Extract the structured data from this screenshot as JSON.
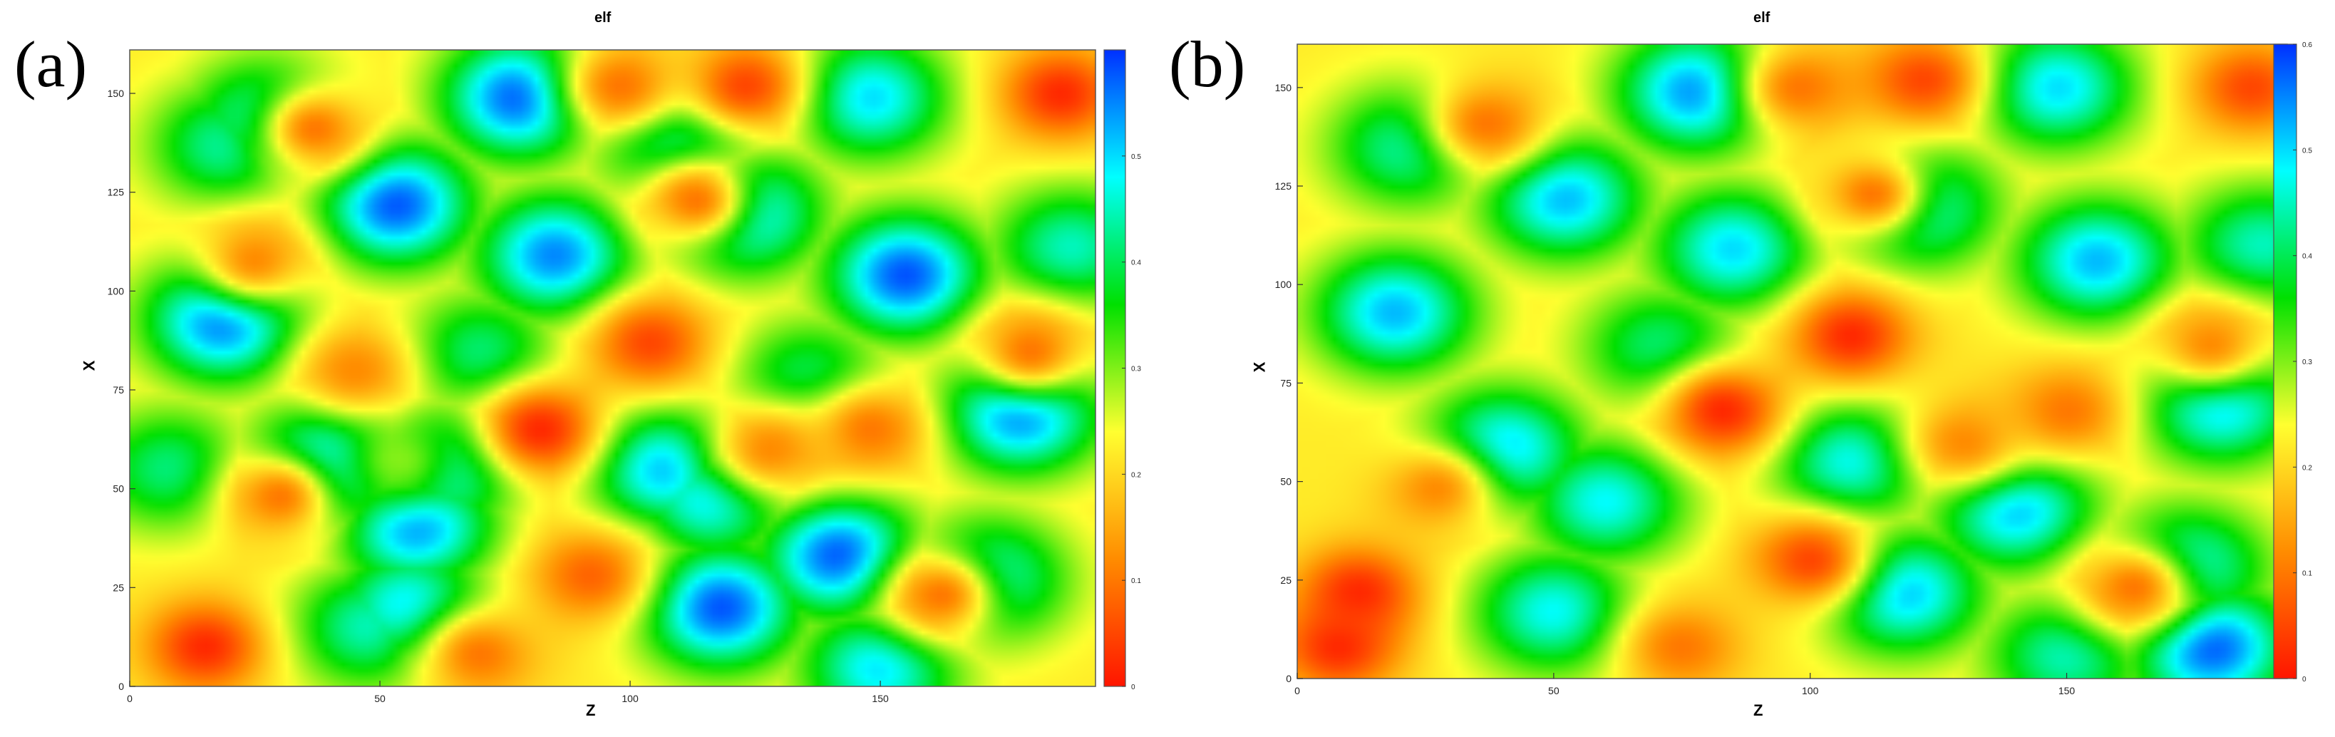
{
  "chart_data": [
    {
      "panel_label": "(a)",
      "type": "heatmap",
      "title": "elf",
      "xlabel": "Z",
      "ylabel": "X",
      "xlim": [
        0,
        193
      ],
      "ylim": [
        0,
        161
      ],
      "xticks": [
        0,
        50,
        100,
        150
      ],
      "yticks": [
        0,
        25,
        50,
        75,
        100,
        125,
        150
      ],
      "colorbar": {
        "range": [
          0,
          0.6
        ],
        "ticks": [
          0,
          0.1,
          0.2,
          0.3,
          0.4,
          0.5
        ],
        "tick_labels": [
          "0",
          "0.1",
          "0.2",
          "0.3",
          "0.4",
          "0.5"
        ],
        "colormap": [
          "#ff1500",
          "#ff8c00",
          "#ffff30",
          "#00e000",
          "#00ffff",
          "#0030ff"
        ]
      },
      "blobs_high": [
        [
          19,
          93,
          0.58
        ],
        [
          40,
          56,
          0.58
        ],
        [
          53,
          122,
          0.58
        ],
        [
          85,
          109,
          0.55
        ],
        [
          57,
          41,
          0.55
        ],
        [
          62,
          55,
          0.5
        ],
        [
          118,
          20,
          0.58
        ],
        [
          142,
          33,
          0.58
        ],
        [
          155,
          104,
          0.58
        ],
        [
          178,
          70,
          0.58
        ],
        [
          107,
          55,
          0.52
        ],
        [
          116,
          48,
          0.5
        ],
        [
          122,
          120,
          0.55
        ],
        [
          110,
          137,
          0.5
        ],
        [
          56,
          20,
          0.5
        ],
        [
          48,
          15,
          0.45
        ],
        [
          148,
          149,
          0.5
        ],
        [
          78,
          149,
          0.58
        ],
        [
          150,
          5,
          0.5
        ],
        [
          28,
          143,
          0.5
        ],
        [
          20,
          137,
          0.45
        ],
        [
          171,
          27,
          0.5
        ],
        [
          188,
          111,
          0.45
        ],
        [
          70,
          84,
          0.42
        ],
        [
          8,
          55,
          0.42
        ],
        [
          136,
          77,
          0.42
        ]
      ],
      "blobs_low": [
        [
          15,
          10,
          0.02
        ],
        [
          104,
          87,
          0.05
        ],
        [
          82,
          65,
          0.02
        ],
        [
          186,
          150,
          0.02
        ],
        [
          37,
          141,
          0.1
        ],
        [
          113,
          123,
          0.1
        ],
        [
          98,
          152,
          0.1
        ],
        [
          123,
          152,
          0.05
        ],
        [
          92,
          28,
          0.08
        ],
        [
          70,
          8,
          0.1
        ],
        [
          30,
          48,
          0.1
        ],
        [
          148,
          65,
          0.1
        ],
        [
          25,
          108,
          0.12
        ],
        [
          162,
          23,
          0.1
        ],
        [
          54,
          57,
          0.3
        ],
        [
          180,
          85,
          0.1
        ],
        [
          128,
          60,
          0.12
        ],
        [
          45,
          80,
          0.12
        ]
      ]
    },
    {
      "panel_label": "(b)",
      "type": "heatmap",
      "title": "elf",
      "xlabel": "Z",
      "ylabel": "X",
      "xlim": [
        0,
        193
      ],
      "ylim": [
        0,
        161
      ],
      "xticks": [
        0,
        50,
        100,
        150
      ],
      "yticks": [
        0,
        25,
        50,
        75,
        100,
        125,
        150
      ],
      "colorbar": {
        "range": [
          0,
          0.6
        ],
        "ticks": [
          0,
          0.1,
          0.2,
          0.3,
          0.4,
          0.5,
          0.6
        ],
        "tick_labels": [
          "0",
          "0.1",
          "0.2",
          "0.3",
          "0.4",
          "0.5",
          "0.6"
        ],
        "colormap": [
          "#ff1500",
          "#ff8c00",
          "#ffff30",
          "#00e000",
          "#00ffff",
          "#0030ff"
        ]
      },
      "blobs_high": [
        [
          19,
          93,
          0.52
        ],
        [
          40,
          58,
          0.52
        ],
        [
          52,
          122,
          0.52
        ],
        [
          85,
          109,
          0.5
        ],
        [
          60,
          45,
          0.48
        ],
        [
          118,
          22,
          0.52
        ],
        [
          140,
          43,
          0.52
        ],
        [
          156,
          106,
          0.52
        ],
        [
          180,
          70,
          0.52
        ],
        [
          108,
          55,
          0.48
        ],
        [
          120,
          120,
          0.52
        ],
        [
          148,
          150,
          0.5
        ],
        [
          78,
          149,
          0.55
        ],
        [
          22,
          135,
          0.45
        ],
        [
          50,
          17,
          0.48
        ],
        [
          173,
          28,
          0.5
        ],
        [
          178,
          8,
          0.58
        ],
        [
          150,
          6,
          0.45
        ],
        [
          188,
          110,
          0.45
        ],
        [
          71,
          84,
          0.42
        ]
      ],
      "blobs_low": [
        [
          12,
          22,
          0.02
        ],
        [
          8,
          8,
          0.02
        ],
        [
          108,
          87,
          0.02
        ],
        [
          83,
          68,
          0.02
        ],
        [
          186,
          150,
          0.05
        ],
        [
          37,
          141,
          0.1
        ],
        [
          112,
          123,
          0.1
        ],
        [
          98,
          150,
          0.1
        ],
        [
          122,
          152,
          0.05
        ],
        [
          100,
          30,
          0.05
        ],
        [
          75,
          8,
          0.1
        ],
        [
          27,
          48,
          0.12
        ],
        [
          150,
          68,
          0.1
        ],
        [
          163,
          23,
          0.1
        ],
        [
          178,
          85,
          0.12
        ],
        [
          130,
          60,
          0.12
        ]
      ]
    }
  ]
}
